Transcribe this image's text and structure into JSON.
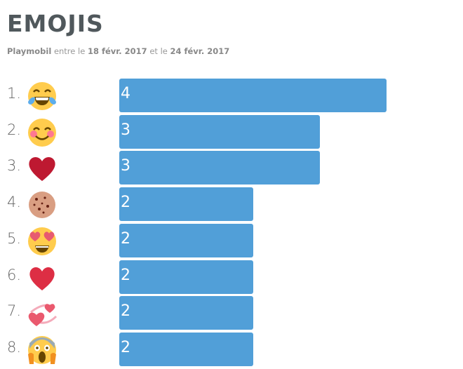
{
  "header": {
    "title": "EMOJIS",
    "brand": "Playmobil",
    "between": "entre le",
    "start": "18 févr. 2017",
    "and": "et le",
    "end": "24 févr. 2017"
  },
  "colors": {
    "bar": "#519fd8"
  },
  "chart_data": {
    "type": "bar",
    "orientation": "horizontal",
    "title": "EMOJIS",
    "categories": [
      "face-with-tears-of-joy",
      "smiling-face-with-smiling-eyes",
      "red-heart",
      "cookie",
      "smiling-face-with-heart-eyes",
      "heart-suit",
      "revolving-hearts",
      "face-screaming-in-fear"
    ],
    "ranks": [
      "1.",
      "2.",
      "3.",
      "4.",
      "5.",
      "6.",
      "7.",
      "8."
    ],
    "values": [
      4,
      3,
      3,
      2,
      2,
      2,
      2,
      2
    ],
    "xlim": [
      0,
      4
    ]
  }
}
